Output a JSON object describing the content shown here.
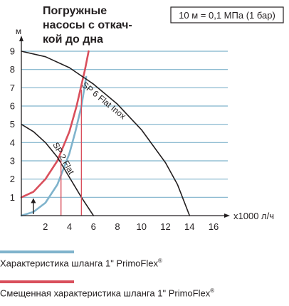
{
  "chart_data": {
    "type": "line",
    "title_lines": [
      "Погружные",
      "насосы с откач-",
      "кой до дна"
    ],
    "conversion_note": "10 м = 0,1 МПа (1 бар)",
    "ylabel": "м",
    "xlabel": "x1000 л/ч",
    "xlim": [
      0,
      16
    ],
    "ylim": [
      0,
      9
    ],
    "xticks": [
      2,
      4,
      6,
      8,
      10,
      12,
      14,
      16
    ],
    "yticks": [
      1,
      2,
      3,
      4,
      5,
      6,
      7,
      8,
      9
    ],
    "grid": "horizontal",
    "series": [
      {
        "name": "SP 6 Flat Inox",
        "role": "pump",
        "color": "#231f20",
        "points": [
          [
            0,
            9
          ],
          [
            2,
            8.7
          ],
          [
            4,
            8.1
          ],
          [
            6,
            7.2
          ],
          [
            8,
            6.1
          ],
          [
            10,
            4.7
          ],
          [
            12,
            2.9
          ],
          [
            13,
            1.7
          ],
          [
            14,
            0
          ]
        ]
      },
      {
        "name": "SP 2 Flat",
        "role": "pump",
        "color": "#231f20",
        "points": [
          [
            0,
            5
          ],
          [
            1,
            4.6
          ],
          [
            2,
            4.0
          ],
          [
            3,
            3.2
          ],
          [
            4,
            2.1
          ],
          [
            5,
            1.0
          ],
          [
            6,
            0
          ]
        ]
      },
      {
        "name": "Характеристика шланга 1\" PrimoFlex",
        "role": "hose",
        "color": "#7fb3cc",
        "points": [
          [
            0,
            0
          ],
          [
            1,
            0.2
          ],
          [
            2,
            0.7
          ],
          [
            3,
            1.7
          ],
          [
            4,
            3.4
          ],
          [
            4.5,
            4.6
          ],
          [
            5,
            6.0
          ],
          [
            5.4,
            7.6
          ]
        ]
      },
      {
        "name": "Смещенная характеристика шланга 1\" PrimoFlex",
        "role": "hose-offset",
        "color": "#d94f5c",
        "points": [
          [
            0,
            1
          ],
          [
            1,
            1.3
          ],
          [
            2,
            2.0
          ],
          [
            3,
            3.0
          ],
          [
            4,
            4.6
          ],
          [
            4.6,
            6.0
          ],
          [
            5.3,
            8.0
          ],
          [
            5.6,
            9.0
          ]
        ]
      }
    ],
    "marker_lines": [
      {
        "x": 3.3,
        "y": 3.1,
        "color": "#d94f5c"
      },
      {
        "x": 5.0,
        "y": 6.9,
        "color": "#d94f5c"
      }
    ],
    "offset_arrow": {
      "x": 1,
      "from": 0,
      "to": 1
    }
  },
  "legend": {
    "items": [
      {
        "label": "Характеристика шланга 1\" PrimoFlex",
        "mark": "®",
        "color": "#7fb3cc"
      },
      {
        "label": "Смещенная характеристика шланга 1\" PrimoFlex",
        "mark": "®",
        "color": "#d94f5c"
      }
    ]
  },
  "colors": {
    "grid": "#7fb3cc",
    "axis": "#231f20"
  }
}
